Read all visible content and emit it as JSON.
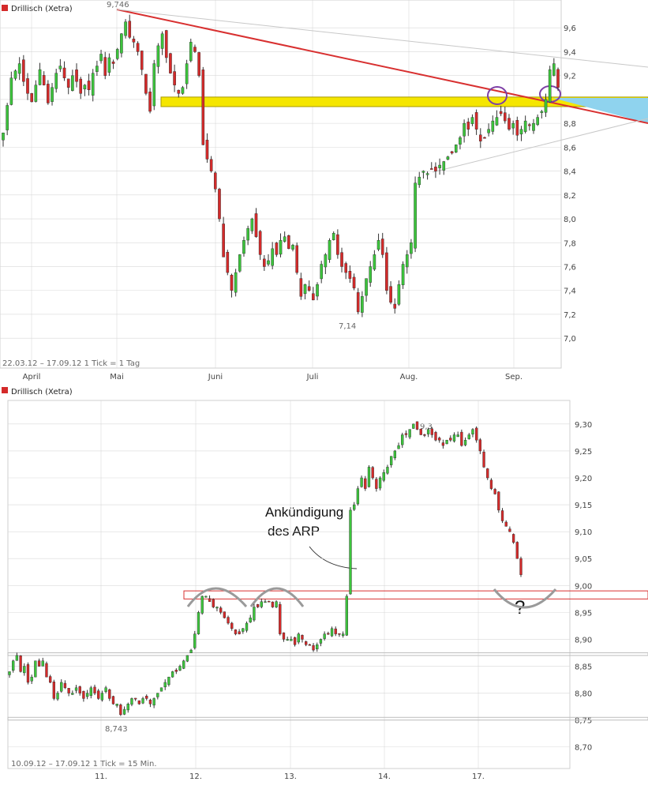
{
  "colors": {
    "up": "#3cc43c",
    "down": "#d42a2a",
    "wick": "#333333",
    "trend": "#d83030",
    "zone": "#f5e600",
    "wedge": "#8fd3ee",
    "circle": "#7d3fa6",
    "grid": "#d9d9d9"
  },
  "chart_data": [
    {
      "type": "candlestick",
      "legend": "Drillisch (Xetra)",
      "footer": "22.03.12 – 17.09.12   1 Tick = 1 Tag",
      "yticks": [
        "9,6",
        "9,4",
        "9,2",
        "9,0",
        "8,8",
        "8,6",
        "8,4",
        "8,2",
        "8,0",
        "7,8",
        "7,6",
        "7,4",
        "7,2",
        "7,0"
      ],
      "ylim": [
        6.75,
        9.78
      ],
      "xlabels": [
        "April",
        "Mai",
        "Juni",
        "Juli",
        "Aug.",
        "Sep."
      ],
      "annotations": {
        "high": "9,746",
        "low": "7,14"
      },
      "resistance_zone": [
        8.94,
        9.02
      ],
      "close": [
        8.72,
        8.95,
        9.18,
        9.24,
        9.3,
        9.15,
        9.05,
        8.98,
        9.12,
        9.25,
        9.12,
        8.97,
        9.1,
        9.22,
        9.28,
        9.18,
        9.1,
        9.2,
        9.15,
        9.05,
        9.12,
        9.08,
        9.22,
        9.28,
        9.38,
        9.2,
        9.35,
        9.3,
        9.42,
        9.55,
        9.65,
        9.52,
        9.48,
        9.4,
        9.25,
        9.05,
        8.9,
        9.3,
        9.45,
        9.55,
        9.35,
        9.22,
        9.12,
        9.05,
        9.1,
        9.3,
        9.48,
        9.4,
        9.2,
        8.62,
        8.5,
        8.4,
        8.25,
        8.0,
        7.68,
        7.55,
        7.4,
        7.55,
        7.7,
        7.82,
        7.92,
        8.0,
        7.85,
        7.7,
        7.6,
        7.65,
        7.75,
        7.7,
        7.82,
        7.85,
        7.75,
        7.78,
        7.55,
        7.35,
        7.45,
        7.4,
        7.32,
        7.45,
        7.62,
        7.7,
        7.82,
        7.88,
        7.7,
        7.6,
        7.55,
        7.5,
        7.42,
        7.22,
        7.35,
        7.5,
        7.6,
        7.7,
        7.82,
        7.7,
        7.4,
        7.3,
        7.25,
        7.45,
        7.62,
        7.7,
        7.8,
        8.3,
        8.35,
        8.4,
        8.38,
        8.42,
        8.4,
        8.45,
        8.48,
        8.52,
        8.55,
        8.62,
        8.68,
        8.8,
        8.75,
        8.85,
        8.75,
        8.65,
        8.68,
        8.75,
        8.82,
        8.85,
        8.88,
        8.82,
        8.75,
        8.8,
        8.7,
        8.75,
        8.82,
        8.78,
        8.8,
        8.85,
        8.9,
        9.0,
        9.25,
        9.3,
        9.1
      ]
    },
    {
      "type": "candlestick",
      "legend": "Drillisch (Xetra)",
      "footer": "10.09.12 – 17.09.12   1 Tick = 15 Min.",
      "yticks": [
        "9,30",
        "9,25",
        "9,20",
        "9,15",
        "9,10",
        "9,05",
        "9,00",
        "8,95",
        "8,90",
        "8,85",
        "8,80",
        "8,75",
        "8,70"
      ],
      "ylim": [
        8.66,
        9.335
      ],
      "xlabels": [
        "11.",
        "12.",
        "13.",
        "14.",
        "17."
      ],
      "annotations": {
        "high": "9,3",
        "low": "8,743"
      },
      "text_annotation": [
        "Ankündigung",
        "des ARP"
      ],
      "question_mark": "?",
      "resistance_band": [
        8.975,
        8.99
      ],
      "support_band": [
        8.87,
        8.875
      ],
      "low_band": [
        8.75,
        8.755
      ],
      "close": [
        8.84,
        8.86,
        8.87,
        8.84,
        8.85,
        8.82,
        8.83,
        8.86,
        8.85,
        8.86,
        8.83,
        8.82,
        8.79,
        8.8,
        8.82,
        8.81,
        8.8,
        8.8,
        8.81,
        8.8,
        8.79,
        8.8,
        8.81,
        8.8,
        8.79,
        8.8,
        8.81,
        8.79,
        8.78,
        8.78,
        8.76,
        8.77,
        8.78,
        8.79,
        8.79,
        8.78,
        8.79,
        8.79,
        8.78,
        8.79,
        8.8,
        8.81,
        8.82,
        8.83,
        8.84,
        8.84,
        8.85,
        8.86,
        8.87,
        8.88,
        8.91,
        8.95,
        8.98,
        8.98,
        8.97,
        8.96,
        8.96,
        8.95,
        8.94,
        8.93,
        8.92,
        8.91,
        8.91,
        8.92,
        8.93,
        8.94,
        8.96,
        8.96,
        8.97,
        8.97,
        8.97,
        8.96,
        8.97,
        8.91,
        8.9,
        8.9,
        8.9,
        8.89,
        8.91,
        8.9,
        8.89,
        8.89,
        8.88,
        8.89,
        8.9,
        8.91,
        8.91,
        8.92,
        8.91,
        8.91,
        8.91,
        8.98,
        9.14,
        9.15,
        9.18,
        9.2,
        9.18,
        9.22,
        9.2,
        9.18,
        9.2,
        9.21,
        9.22,
        9.24,
        9.25,
        9.26,
        9.28,
        9.28,
        9.29,
        9.3,
        9.29,
        9.28,
        9.28,
        9.29,
        9.28,
        9.27,
        9.27,
        9.26,
        9.27,
        9.27,
        9.28,
        9.28,
        9.26,
        9.27,
        9.28,
        9.29,
        9.27,
        9.25,
        9.22,
        9.2,
        9.18,
        9.17,
        9.14,
        9.12,
        9.11,
        9.1,
        9.08,
        9.05,
        9.02
      ]
    }
  ]
}
